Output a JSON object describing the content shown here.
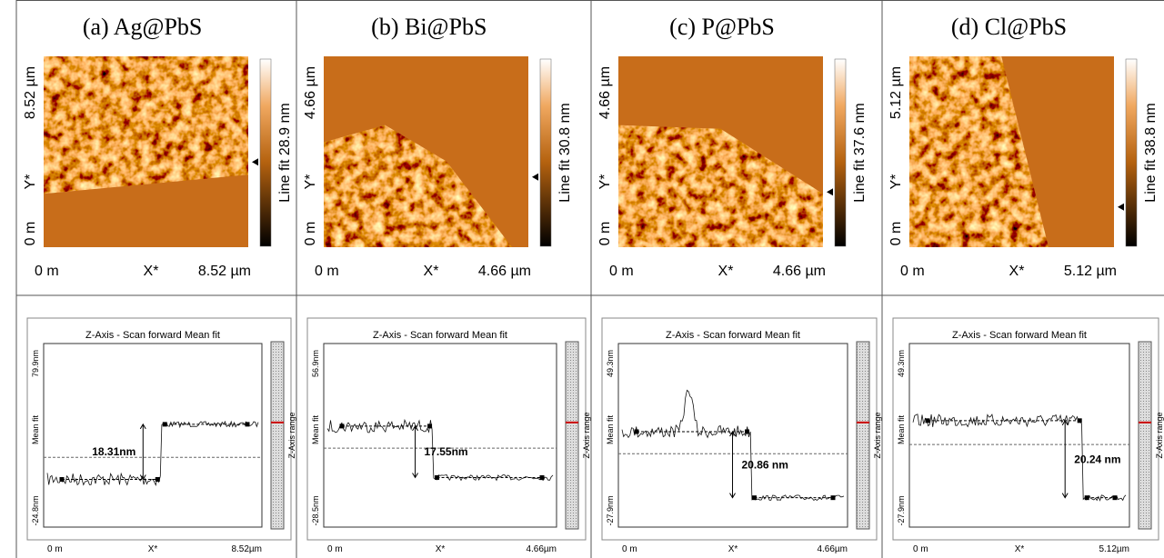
{
  "panels": [
    {
      "title": "(a) Ag@PbS",
      "image": {
        "y_max": "8.52 µm",
        "y_label": "Y*",
        "y_min": "0 m",
        "x_min": "0 m",
        "x_label": "X*",
        "x_max": "8.52 µm",
        "colorbar": "Line fit 28.9 nm"
      },
      "profile": {
        "title": "Z-Axis - Scan forward   Mean fit",
        "y_max": "79.9nm",
        "y_label": "Mean fit",
        "y_min": "-24.8nm",
        "x_min": "0 m",
        "x_label": "X*",
        "x_max": "8.52µm",
        "step": "18.31nm",
        "side": "Z-Axis range"
      }
    },
    {
      "title": "(b) Bi@PbS",
      "image": {
        "y_max": "4.66 µm",
        "y_label": "Y*",
        "y_min": "0 m",
        "x_min": "0 m",
        "x_label": "X*",
        "x_max": "4.66 µm",
        "colorbar": "Line fit 30.8 nm"
      },
      "profile": {
        "title": "Z-Axis - Scan forward   Mean fit",
        "y_max": "56.9nm",
        "y_label": "Mean fit",
        "y_min": "-28.5nm",
        "x_min": "0 m",
        "x_label": "X*",
        "x_max": "4.66µm",
        "step": "17.55nm",
        "side": "Z-Axis range"
      }
    },
    {
      "title": "(c) P@PbS",
      "image": {
        "y_max": "4.66 µm",
        "y_label": "Y*",
        "y_min": "0 m",
        "x_min": "0 m",
        "x_label": "X*",
        "x_max": "4.66 µm",
        "colorbar": "Line fit 37.6 nm"
      },
      "profile": {
        "title": "Z-Axis - Scan forward   Mean fit",
        "y_max": "49.3nm",
        "y_label": "Mean fit",
        "y_min": "-27.9nm",
        "x_min": "0 m",
        "x_label": "X*",
        "x_max": "4.66µm",
        "step": "20.86 nm",
        "side": "Z-Axis range"
      }
    },
    {
      "title": "(d) Cl@PbS",
      "image": {
        "y_max": "5.12 µm",
        "y_label": "Y*",
        "y_min": "0 m",
        "x_min": "0 m",
        "x_label": "X*",
        "x_max": "5.12 µm",
        "colorbar": "Line fit 38.8 nm"
      },
      "profile": {
        "title": "Z-Axis - Scan forward   Mean fit",
        "y_max": "49.3nm",
        "y_label": "Mean fit",
        "y_min": "-27.9nm",
        "x_min": "0 m",
        "x_label": "X*",
        "x_max": "5.12µm",
        "step": "20.24 nm",
        "side": "Z-Axis range"
      }
    }
  ]
}
